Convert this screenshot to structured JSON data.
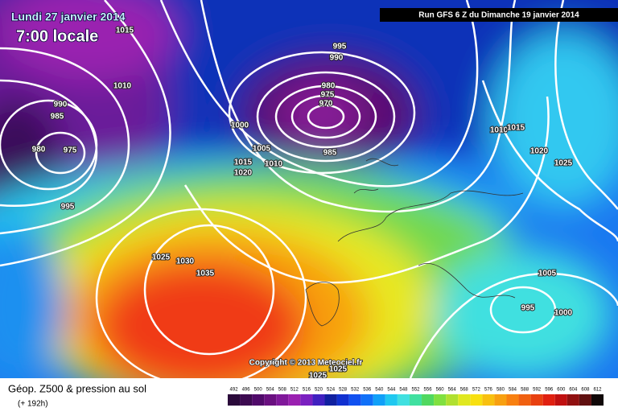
{
  "header": {
    "date": "Lundi 27 janvier 2014",
    "time": "7:00 locale",
    "run": "Run GFS 6 Z du Dimanche 19 janvier 2014"
  },
  "isobar_labels": [
    "1015",
    "995",
    "990",
    "1010",
    "980",
    "975",
    "970",
    "990",
    "985",
    "1000",
    "1010",
    "1015",
    "1005",
    "985",
    "980",
    "975",
    "1020",
    "1015",
    "1010",
    "1025",
    "1020",
    "995",
    "1025",
    "1030",
    "1035",
    "1005",
    "995",
    "1000",
    "1025",
    "1025"
  ],
  "copyright": "Copyright © 2013 Meteociel.fr",
  "footer": {
    "title": "Géop. Z500 & pression au sol",
    "lead": "(+ 192h)"
  },
  "legend": {
    "values": [
      492,
      496,
      500,
      504,
      508,
      512,
      516,
      520,
      524,
      528,
      532,
      536,
      540,
      544,
      548,
      552,
      556,
      560,
      564,
      568,
      572,
      576,
      580,
      584,
      588,
      592,
      596,
      600,
      604,
      608,
      612
    ],
    "colors": [
      "#2a0a3a",
      "#3c0a50",
      "#500a6a",
      "#6a1080",
      "#80189a",
      "#9a20b0",
      "#7a20c0",
      "#4020c0",
      "#1020a0",
      "#1030d0",
      "#1050f0",
      "#1070f8",
      "#10a0f8",
      "#20c8f0",
      "#40e0e0",
      "#40e0a0",
      "#50d860",
      "#80e040",
      "#b0e030",
      "#e0e820",
      "#f8e010",
      "#f8c010",
      "#f8a010",
      "#f88010",
      "#f06010",
      "#e84010",
      "#e02010",
      "#c01010",
      "#901010",
      "#601010",
      "#100808"
    ]
  }
}
